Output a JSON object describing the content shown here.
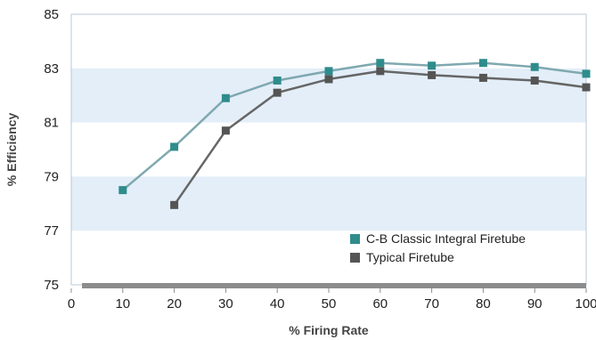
{
  "chart_data": {
    "type": "line",
    "title": "",
    "xlabel": "% Firing Rate",
    "ylabel": "% Efficiency",
    "xlim": [
      0,
      100
    ],
    "ylim": [
      75,
      85
    ],
    "x_ticks": [
      "0",
      "10",
      "20",
      "30",
      "40",
      "50",
      "60",
      "70",
      "80",
      "90",
      "100"
    ],
    "y_ticks": [
      "75",
      "77",
      "79",
      "81",
      "83",
      "85"
    ],
    "bands": [
      [
        77,
        79
      ],
      [
        81,
        83
      ]
    ],
    "band_color": "#e3eef8",
    "grid": false,
    "legend_position": "bottom-right",
    "series": [
      {
        "name": "C-B Classic Integral Firetube",
        "color": "#2f8c8c",
        "line_color": "#7fa8b0",
        "marker": "square",
        "x": [
          10,
          20,
          30,
          40,
          50,
          60,
          70,
          80,
          90,
          100
        ],
        "y": [
          78.5,
          80.1,
          81.9,
          82.55,
          82.9,
          83.2,
          83.1,
          83.2,
          83.05,
          82.8
        ]
      },
      {
        "name": "Typical Firetube",
        "color": "#555555",
        "line_color": "#666666",
        "marker": "square",
        "x": [
          20,
          30,
          40,
          50,
          60,
          70,
          80,
          90,
          100
        ],
        "y": [
          77.95,
          80.7,
          82.1,
          82.6,
          82.9,
          82.75,
          82.65,
          82.55,
          82.3
        ]
      }
    ]
  }
}
